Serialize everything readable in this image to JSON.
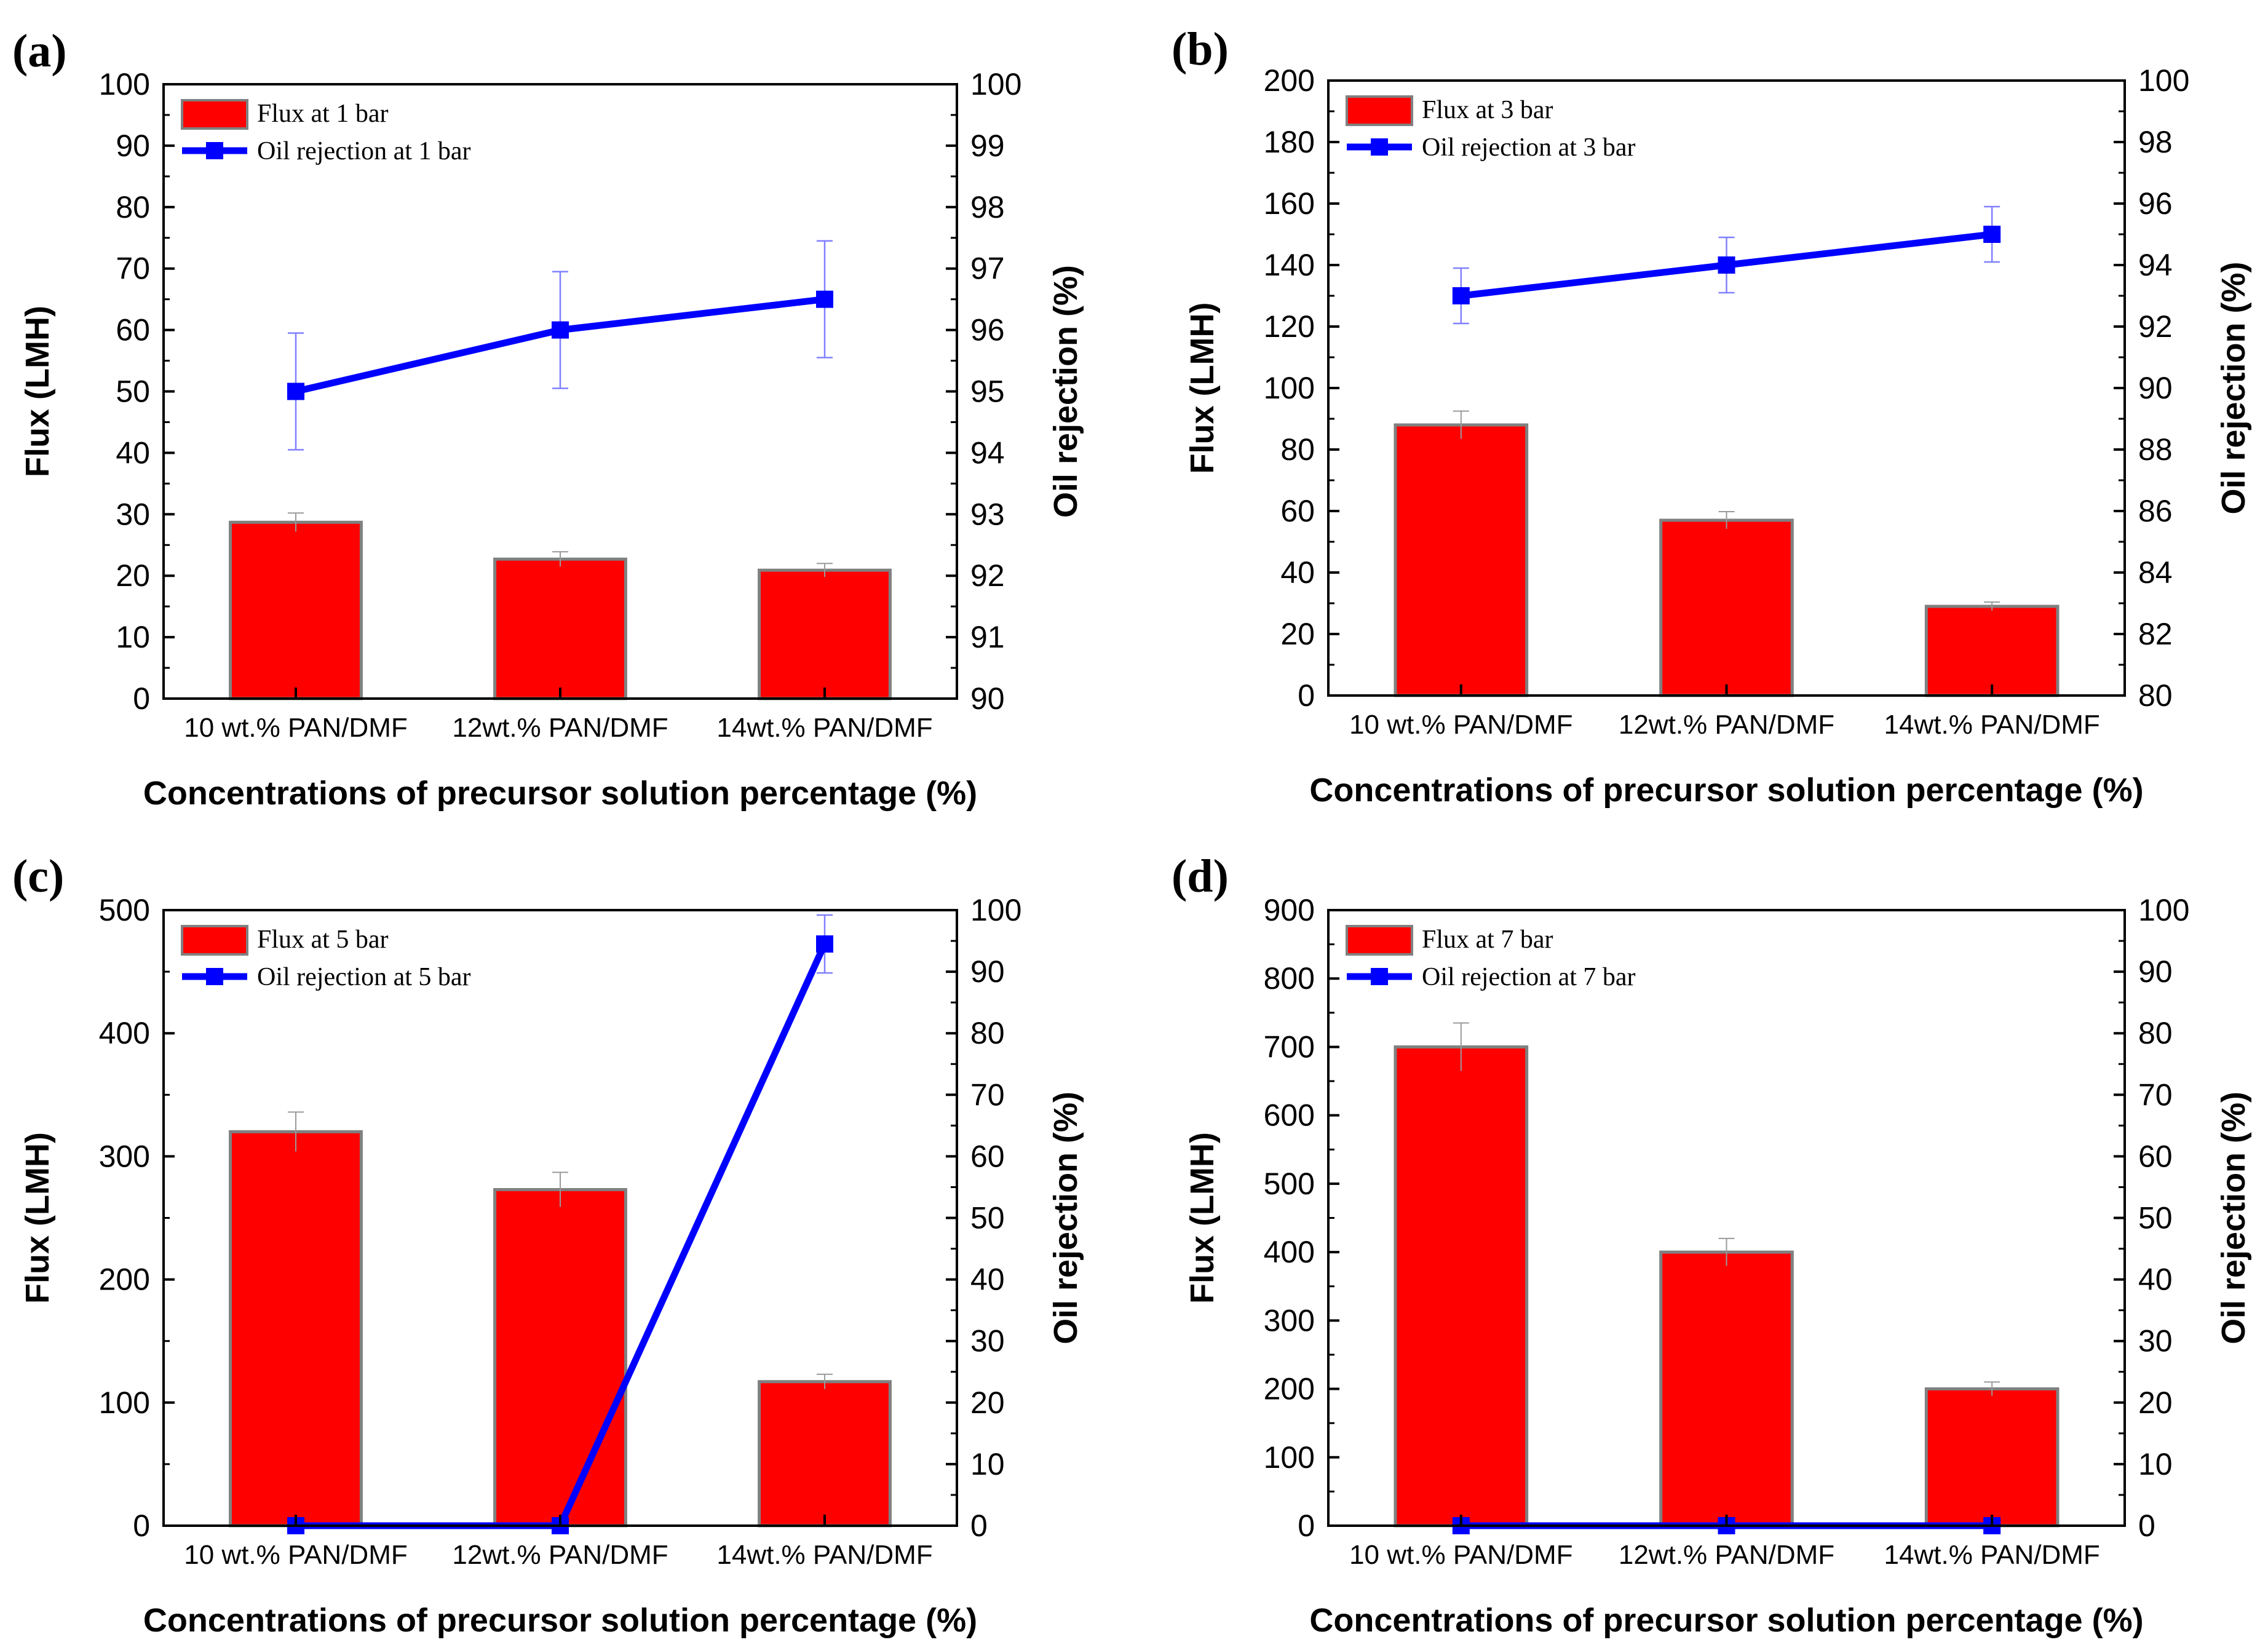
{
  "chart_data": [
    {
      "type": "bar",
      "panel_label": "(a)",
      "categories": [
        "10 wt.% PAN/DMF",
        "12wt.% PAN/DMF",
        "14wt.% PAN/DMF"
      ],
      "xlabel": "Concentrations of precursor solution percentage (%)",
      "ylabel": "Flux (LMH)",
      "y2label": "Oil rejection (%)",
      "ylim": [
        0,
        100
      ],
      "yticks": [
        0,
        10,
        20,
        30,
        40,
        50,
        60,
        70,
        80,
        90,
        100
      ],
      "y2lim": [
        90,
        100
      ],
      "y2ticks": [
        90,
        91,
        92,
        93,
        94,
        95,
        96,
        97,
        98,
        99,
        100
      ],
      "legend_position": "top-left",
      "grid": false,
      "series": [
        {
          "name": "Flux at 1 bar",
          "kind": "bar",
          "axis": "left",
          "color": "#ff0000",
          "values": [
            28.7,
            22.7,
            20.9
          ],
          "errors": [
            1.5,
            1.2,
            1.1
          ]
        },
        {
          "name": "Oil rejection at 1 bar",
          "kind": "line",
          "axis": "right",
          "color": "#0000ff",
          "values": [
            95.0,
            96.0,
            96.5
          ],
          "errors": [
            0.95,
            0.95,
            0.95
          ]
        }
      ]
    },
    {
      "type": "bar",
      "panel_label": "(b)",
      "categories": [
        "10 wt.% PAN/DMF",
        "12wt.% PAN/DMF",
        "14wt.% PAN/DMF"
      ],
      "xlabel": "Concentrations of precursor solution percentage (%)",
      "ylabel": "Flux (LMH)",
      "y2label": "Oil rejection (%)",
      "ylim": [
        0,
        200
      ],
      "yticks": [
        0,
        20,
        40,
        60,
        80,
        100,
        120,
        140,
        160,
        180,
        200
      ],
      "y2lim": [
        80,
        100
      ],
      "y2ticks": [
        80,
        82,
        84,
        86,
        88,
        90,
        92,
        94,
        96,
        98,
        100
      ],
      "legend_position": "top-left",
      "grid": false,
      "series": [
        {
          "name": "Flux at 3 bar",
          "kind": "bar",
          "axis": "left",
          "color": "#ff0000",
          "values": [
            88,
            57,
            29
          ],
          "errors": [
            4.5,
            2.8,
            1.4
          ]
        },
        {
          "name": "Oil rejection at 3 bar",
          "kind": "line",
          "axis": "right",
          "color": "#0000ff",
          "values": [
            93,
            94,
            95
          ],
          "errors": [
            0.9,
            0.9,
            0.9
          ]
        }
      ]
    },
    {
      "type": "bar",
      "panel_label": "(c)",
      "categories": [
        "10 wt.% PAN/DMF",
        "12wt.% PAN/DMF",
        "14wt.% PAN/DMF"
      ],
      "xlabel": "Concentrations of precursor solution percentage (%)",
      "ylabel": "Flux (LMH)",
      "y2label": "Oil rejection (%)",
      "ylim": [
        0,
        500
      ],
      "yticks": [
        0,
        100,
        200,
        300,
        400,
        500
      ],
      "y2lim": [
        0,
        100
      ],
      "y2ticks": [
        0,
        10,
        20,
        30,
        40,
        50,
        60,
        70,
        80,
        90,
        100
      ],
      "legend_position": "top-left",
      "grid": false,
      "series": [
        {
          "name": "Flux at 5 bar",
          "kind": "bar",
          "axis": "left",
          "color": "#ff0000",
          "values": [
            320,
            273,
            117
          ],
          "errors": [
            16,
            14,
            6
          ]
        },
        {
          "name": "Oil rejection at 5 bar",
          "kind": "line",
          "axis": "right",
          "color": "#0000ff",
          "values": [
            0,
            0,
            94.5
          ],
          "errors": [
            0,
            0,
            4.7
          ]
        }
      ]
    },
    {
      "type": "bar",
      "panel_label": "(d)",
      "categories": [
        "10 wt.% PAN/DMF",
        "12wt.% PAN/DMF",
        "14wt.% PAN/DMF"
      ],
      "xlabel": "Concentrations of precursor solution percentage (%)",
      "ylabel": "Flux (LMH)",
      "y2label": "Oil rejection (%)",
      "ylim": [
        0,
        900
      ],
      "yticks": [
        0,
        100,
        200,
        300,
        400,
        500,
        600,
        700,
        800,
        900
      ],
      "y2lim": [
        0,
        100
      ],
      "y2ticks": [
        0,
        10,
        20,
        30,
        40,
        50,
        60,
        70,
        80,
        90,
        100
      ],
      "legend_position": "top-left",
      "grid": false,
      "series": [
        {
          "name": "Flux at 7 bar",
          "kind": "bar",
          "axis": "left",
          "color": "#ff0000",
          "values": [
            700,
            400,
            200
          ],
          "errors": [
            35,
            20,
            10
          ]
        },
        {
          "name": "Oil rejection at 7 bar",
          "kind": "line",
          "axis": "right",
          "color": "#0000ff",
          "values": [
            0,
            0,
            0
          ],
          "errors": [
            0,
            0,
            0
          ]
        }
      ]
    }
  ]
}
